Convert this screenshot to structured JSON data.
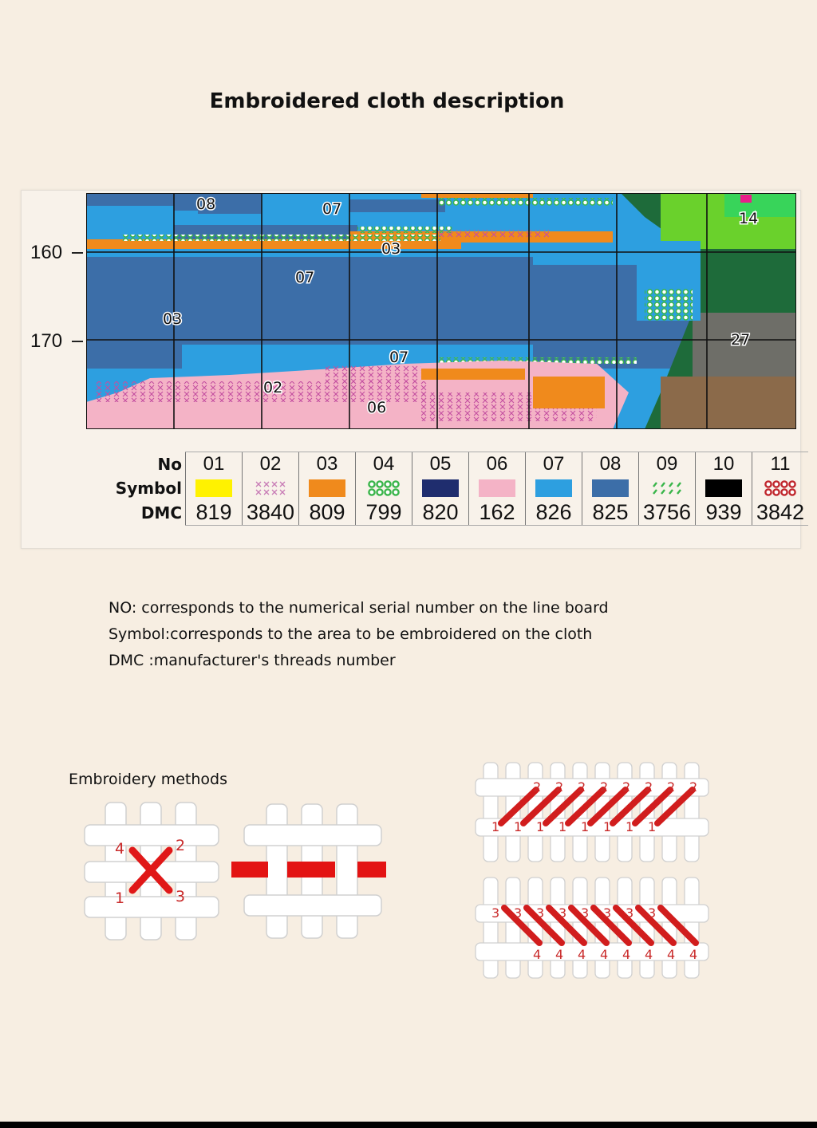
{
  "title": "Embroidered cloth description",
  "chart": {
    "row_labels": [
      "160",
      "170"
    ],
    "region_labels": [
      "08",
      "07",
      "03",
      "07",
      "03",
      "07",
      "02",
      "06",
      "14",
      "27"
    ]
  },
  "legend": {
    "headers": {
      "no": "No",
      "symbol": "Symbol",
      "dmc": "DMC"
    },
    "items": [
      {
        "no": "01",
        "dmc": "819",
        "color": "#fff200",
        "pattern": "solid"
      },
      {
        "no": "02",
        "dmc": "3840",
        "color": "#c77ab5",
        "pattern": "xxxx"
      },
      {
        "no": "03",
        "dmc": "809",
        "color": "#f08a1c",
        "pattern": "solid"
      },
      {
        "no": "04",
        "dmc": "799",
        "color": "#39b54a",
        "pattern": "dots"
      },
      {
        "no": "05",
        "dmc": "820",
        "color": "#1f2d6e",
        "pattern": "solid"
      },
      {
        "no": "06",
        "dmc": "162",
        "color": "#f4b3c6",
        "pattern": "solid"
      },
      {
        "no": "07",
        "dmc": "826",
        "color": "#2d9fe0",
        "pattern": "solid"
      },
      {
        "no": "08",
        "dmc": "825",
        "color": "#3c6ea8",
        "pattern": "solid"
      },
      {
        "no": "09",
        "dmc": "3756",
        "color": "#39b54a",
        "pattern": "dashes"
      },
      {
        "no": "10",
        "dmc": "939",
        "color": "#000000",
        "pattern": "solid"
      },
      {
        "no": "11",
        "dmc": "3842",
        "color": "#c0272d",
        "pattern": "dots"
      }
    ]
  },
  "description": [
    "NO:  corresponds to the numerical serial number on the line board",
    "Symbol:corresponds to the area to be embroidered on the cloth",
    "DMC :manufacturer's threads number"
  ],
  "methods": {
    "title": "Embroidery methods",
    "cross_numbers": [
      "4",
      "2",
      "1",
      "3"
    ],
    "row_top_numbers": [
      "2",
      "1"
    ],
    "row_bottom_numbers": [
      "4",
      "3"
    ]
  }
}
